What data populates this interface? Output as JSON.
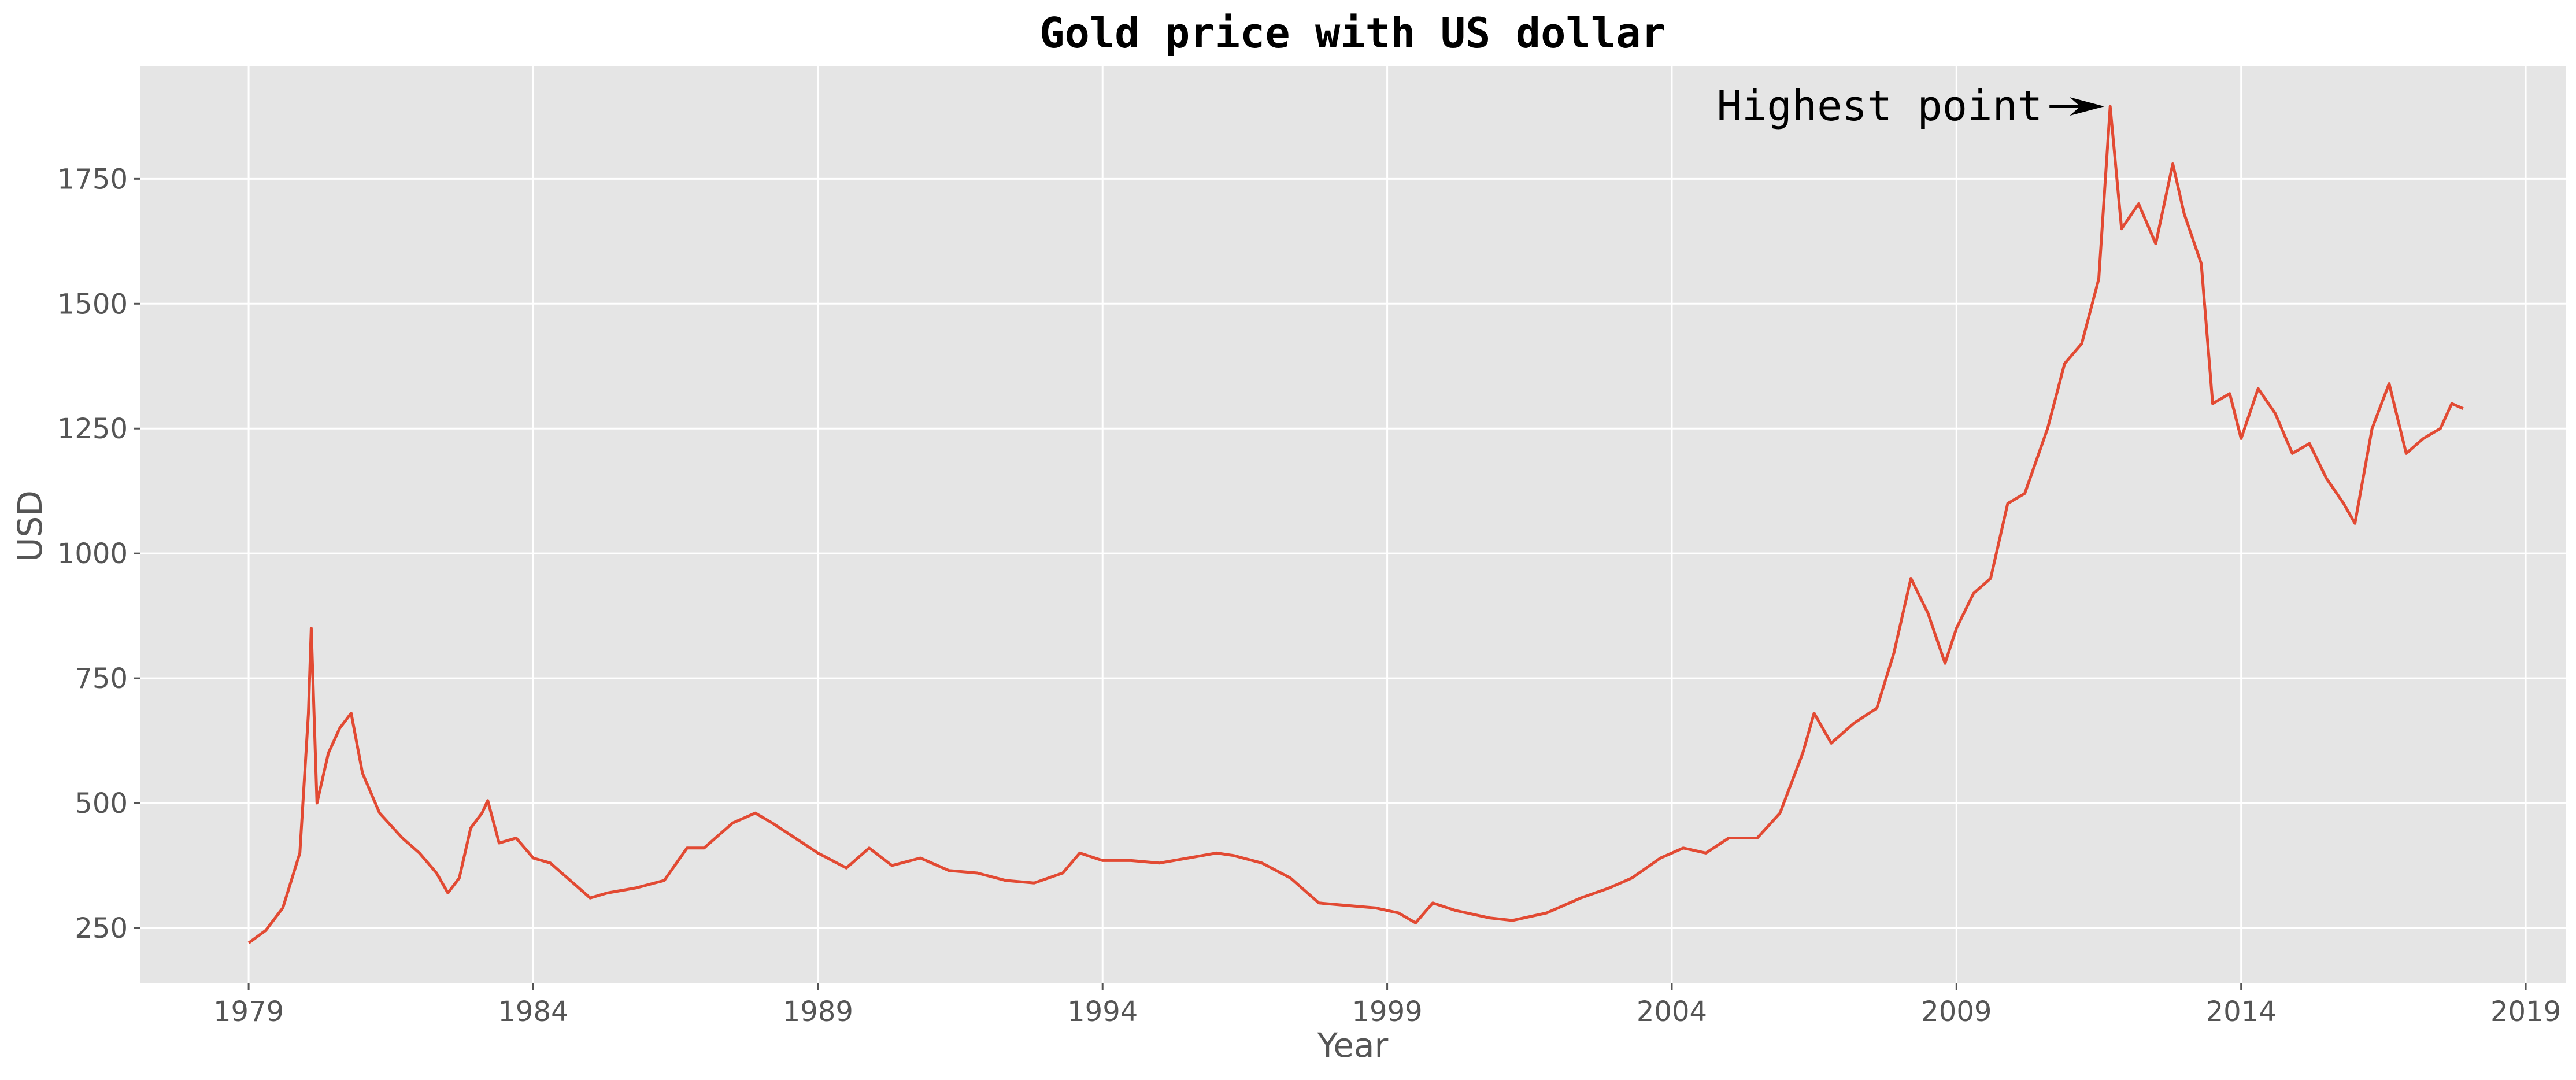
{
  "chart_data": {
    "type": "line",
    "title": "Gold price with US dollar",
    "xlabel": "Year",
    "ylabel": "USD",
    "xlim": [
      1977.1,
      2019.7
    ],
    "ylim": [
      140,
      1975
    ],
    "x_ticks": [
      1979,
      1984,
      1989,
      1994,
      1999,
      2004,
      2009,
      2014,
      2019
    ],
    "y_ticks": [
      250,
      500,
      750,
      1000,
      1250,
      1500,
      1750
    ],
    "grid": true,
    "style": {
      "background": "#e5e5e5",
      "grid_color": "#ffffff",
      "line_color": "#e24a33"
    },
    "annotation": {
      "text": "Highest point",
      "x": 2011.7,
      "y": 1895
    },
    "series": [
      {
        "values": [
          [
            1979.0,
            220
          ],
          [
            1979.3,
            245
          ],
          [
            1979.6,
            290
          ],
          [
            1979.9,
            400
          ],
          [
            1980.05,
            680
          ],
          [
            1980.1,
            850
          ],
          [
            1980.2,
            500
          ],
          [
            1980.4,
            600
          ],
          [
            1980.6,
            650
          ],
          [
            1980.8,
            680
          ],
          [
            1981.0,
            560
          ],
          [
            1981.3,
            480
          ],
          [
            1981.7,
            430
          ],
          [
            1982.0,
            400
          ],
          [
            1982.3,
            360
          ],
          [
            1982.5,
            320
          ],
          [
            1982.7,
            350
          ],
          [
            1982.9,
            450
          ],
          [
            1983.1,
            480
          ],
          [
            1983.2,
            505
          ],
          [
            1983.4,
            420
          ],
          [
            1983.7,
            430
          ],
          [
            1984.0,
            390
          ],
          [
            1984.3,
            380
          ],
          [
            1984.6,
            350
          ],
          [
            1985.0,
            310
          ],
          [
            1985.3,
            320
          ],
          [
            1985.8,
            330
          ],
          [
            1986.3,
            345
          ],
          [
            1986.7,
            410
          ],
          [
            1987.0,
            410
          ],
          [
            1987.5,
            460
          ],
          [
            1987.9,
            480
          ],
          [
            1988.2,
            460
          ],
          [
            1988.6,
            430
          ],
          [
            1989.0,
            400
          ],
          [
            1989.5,
            370
          ],
          [
            1989.9,
            410
          ],
          [
            1990.3,
            375
          ],
          [
            1990.8,
            390
          ],
          [
            1991.3,
            365
          ],
          [
            1991.8,
            360
          ],
          [
            1992.3,
            345
          ],
          [
            1992.8,
            340
          ],
          [
            1993.3,
            360
          ],
          [
            1993.6,
            400
          ],
          [
            1994.0,
            385
          ],
          [
            1994.5,
            385
          ],
          [
            1995.0,
            380
          ],
          [
            1995.5,
            390
          ],
          [
            1996.0,
            400
          ],
          [
            1996.3,
            395
          ],
          [
            1996.8,
            380
          ],
          [
            1997.3,
            350
          ],
          [
            1997.8,
            300
          ],
          [
            1998.3,
            295
          ],
          [
            1998.8,
            290
          ],
          [
            1999.2,
            280
          ],
          [
            1999.5,
            260
          ],
          [
            1999.8,
            300
          ],
          [
            2000.2,
            285
          ],
          [
            2000.8,
            270
          ],
          [
            2001.2,
            265
          ],
          [
            2001.8,
            280
          ],
          [
            2002.4,
            310
          ],
          [
            2002.9,
            330
          ],
          [
            2003.3,
            350
          ],
          [
            2003.8,
            390
          ],
          [
            2004.2,
            410
          ],
          [
            2004.6,
            400
          ],
          [
            2005.0,
            430
          ],
          [
            2005.5,
            430
          ],
          [
            2005.9,
            480
          ],
          [
            2006.3,
            600
          ],
          [
            2006.5,
            680
          ],
          [
            2006.8,
            620
          ],
          [
            2007.2,
            660
          ],
          [
            2007.6,
            690
          ],
          [
            2007.9,
            800
          ],
          [
            2008.2,
            950
          ],
          [
            2008.5,
            880
          ],
          [
            2008.8,
            780
          ],
          [
            2009.0,
            850
          ],
          [
            2009.3,
            920
          ],
          [
            2009.6,
            950
          ],
          [
            2009.9,
            1100
          ],
          [
            2010.2,
            1120
          ],
          [
            2010.6,
            1250
          ],
          [
            2010.9,
            1380
          ],
          [
            2011.2,
            1420
          ],
          [
            2011.5,
            1550
          ],
          [
            2011.7,
            1895
          ],
          [
            2011.9,
            1650
          ],
          [
            2012.2,
            1700
          ],
          [
            2012.5,
            1620
          ],
          [
            2012.8,
            1780
          ],
          [
            2013.0,
            1680
          ],
          [
            2013.3,
            1580
          ],
          [
            2013.5,
            1300
          ],
          [
            2013.8,
            1320
          ],
          [
            2014.0,
            1230
          ],
          [
            2014.3,
            1330
          ],
          [
            2014.6,
            1280
          ],
          [
            2014.9,
            1200
          ],
          [
            2015.2,
            1220
          ],
          [
            2015.5,
            1150
          ],
          [
            2015.8,
            1100
          ],
          [
            2016.0,
            1060
          ],
          [
            2016.3,
            1250
          ],
          [
            2016.6,
            1340
          ],
          [
            2016.9,
            1200
          ],
          [
            2017.2,
            1230
          ],
          [
            2017.5,
            1250
          ],
          [
            2017.7,
            1300
          ],
          [
            2017.9,
            1290
          ]
        ]
      }
    ]
  }
}
